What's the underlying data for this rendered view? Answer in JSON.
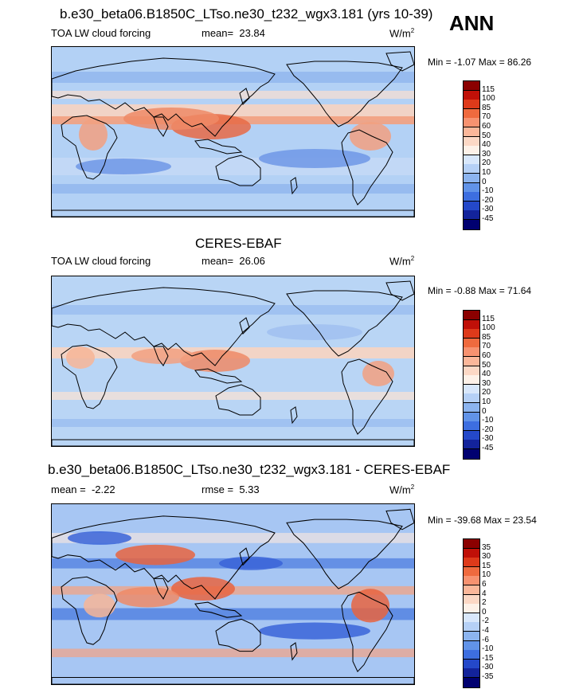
{
  "season": "ANN",
  "colors": {
    "ocean_base": "#a9c9f2",
    "coast": "#000000"
  },
  "chart_data": [
    {
      "type": "heatmap",
      "title": "b.e30_beta06.B1850C_LTso.ne30_t232_wgx3.181 (yrs 10-39)",
      "variable": "TOA LW cloud forcing",
      "stat_label": "mean=",
      "stat_value": "23.84",
      "units": "W/m",
      "units_sup": "2",
      "range_label": "Min =  -1.07 Max =  86.26",
      "min": -1.07,
      "max": 86.26,
      "colorbar": {
        "levels": [
          "115",
          "100",
          "85",
          "70",
          "60",
          "50",
          "40",
          "30",
          "20",
          "10",
          "0",
          "-10",
          "-20",
          "-30",
          "-45"
        ],
        "colors": [
          "#8b0000",
          "#c01008",
          "#de3a1a",
          "#ef6a3e",
          "#f79270",
          "#fbb79a",
          "#fcd8c5",
          "#fdf1e8",
          "#d8e7fb",
          "#b5d0f6",
          "#8cb4ef",
          "#6193e8",
          "#3d6ee0",
          "#2448c9",
          "#13239b",
          "#000070"
        ]
      }
    },
    {
      "type": "heatmap",
      "title": "CERES-EBAF",
      "variable": "TOA LW cloud forcing",
      "stat_label": "mean=",
      "stat_value": "26.06",
      "units": "W/m",
      "units_sup": "2",
      "range_label": "Min =  -0.88 Max =  71.64",
      "min": -0.88,
      "max": 71.64,
      "colorbar": {
        "levels": [
          "115",
          "100",
          "85",
          "70",
          "60",
          "50",
          "40",
          "30",
          "20",
          "10",
          "0",
          "-10",
          "-20",
          "-30",
          "-45"
        ],
        "colors": [
          "#8b0000",
          "#c01008",
          "#de3a1a",
          "#ef6a3e",
          "#f79270",
          "#fbb79a",
          "#fcd8c5",
          "#fdf1e8",
          "#d8e7fb",
          "#b5d0f6",
          "#8cb4ef",
          "#6193e8",
          "#3d6ee0",
          "#2448c9",
          "#13239b",
          "#000070"
        ]
      }
    },
    {
      "type": "heatmap",
      "title": "b.e30_beta06.B1850C_LTso.ne30_t232_wgx3.181 - CERES-EBAF",
      "stat_label": "mean =",
      "stat_value": "-2.22",
      "rmse_label": "rmse =",
      "rmse_value": "5.33",
      "units": "W/m",
      "units_sup": "2",
      "range_label": "Min = -39.68 Max =  23.54",
      "min": -39.68,
      "max": 23.54,
      "colorbar": {
        "levels": [
          "35",
          "30",
          "15",
          "10",
          "6",
          "4",
          "2",
          "0",
          "-2",
          "-4",
          "-6",
          "-10",
          "-15",
          "-30",
          "-35"
        ],
        "colors": [
          "#8b0000",
          "#c01008",
          "#de3a1a",
          "#ef6a3e",
          "#f79270",
          "#fbb79a",
          "#fcd8c5",
          "#fdf1e8",
          "#d8e7fb",
          "#b5d0f6",
          "#8cb4ef",
          "#6193e8",
          "#3d6ee0",
          "#2448c9",
          "#13239b",
          "#000070"
        ]
      }
    }
  ]
}
